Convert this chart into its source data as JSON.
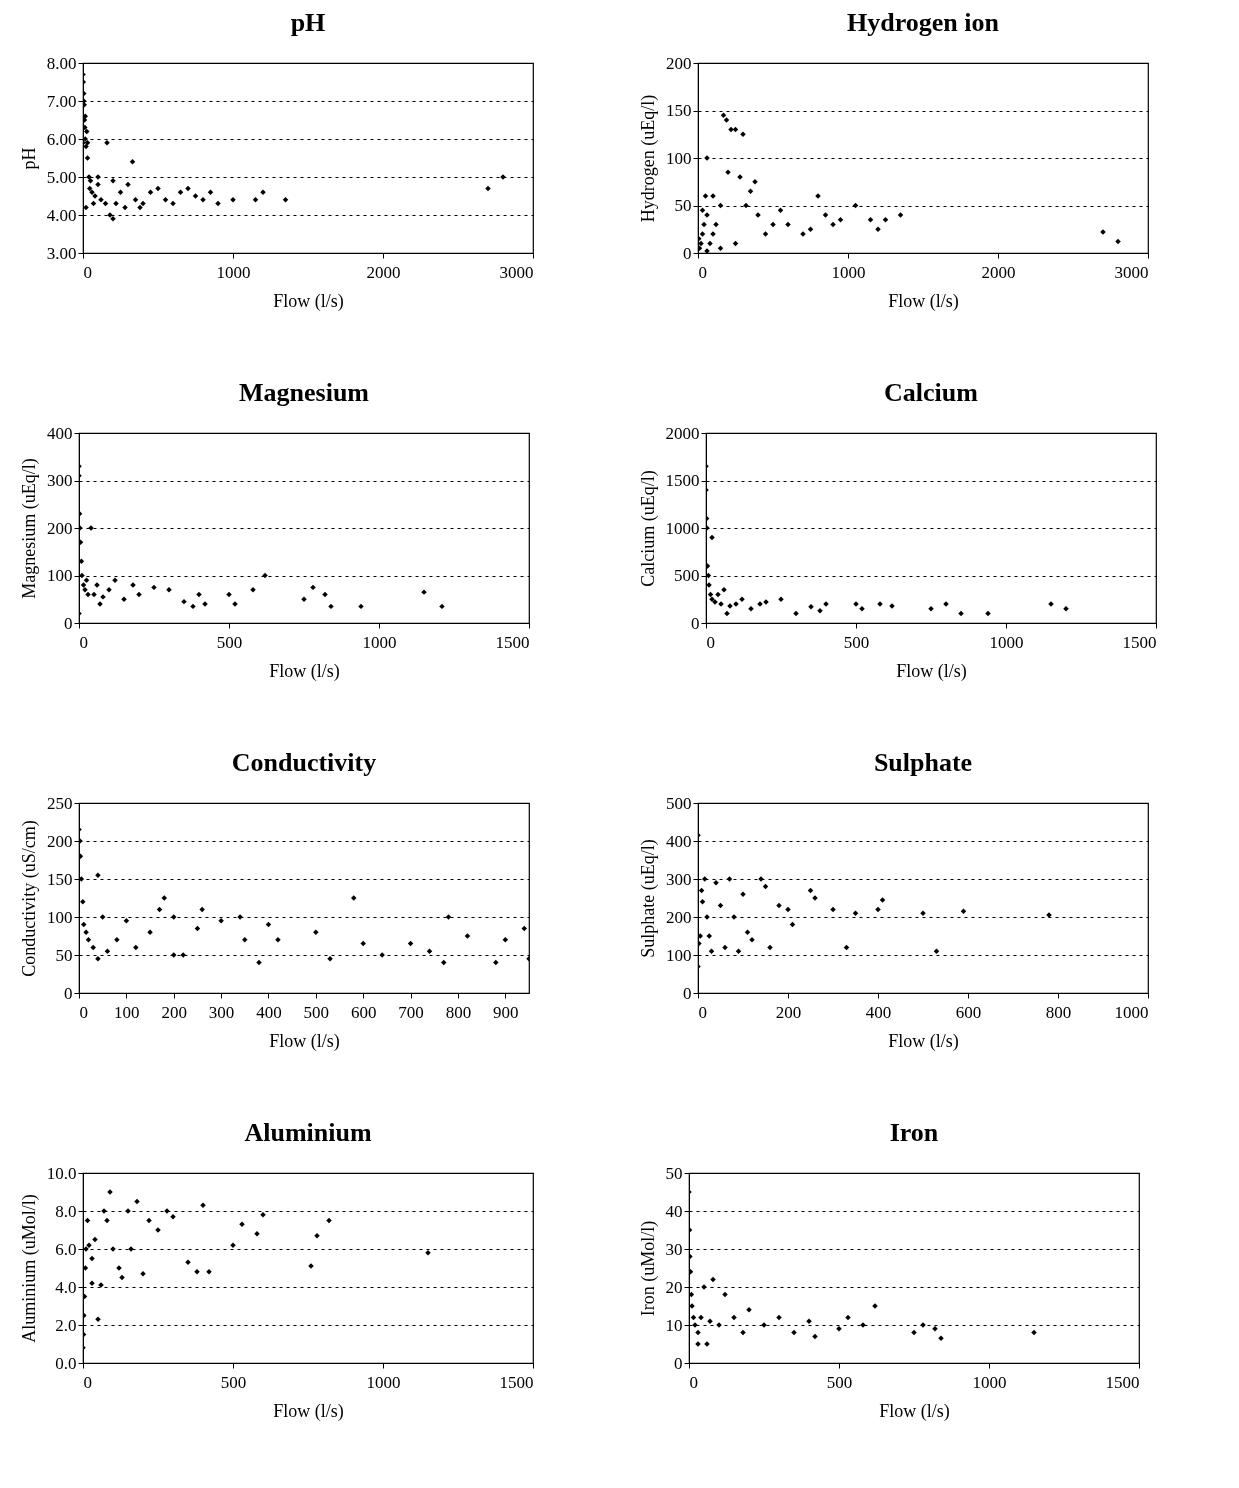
{
  "chart_data": [
    {
      "type": "scatter",
      "title": "pH",
      "xlabel": "Flow (l/s)",
      "ylabel": "pH",
      "xlim": [
        0,
        3000
      ],
      "ylim": [
        3,
        8
      ],
      "xticks": [
        0,
        1000,
        2000,
        3000
      ],
      "yticks": [
        {
          "value": 3,
          "label": "3.00"
        },
        {
          "value": 4,
          "label": "4.00"
        },
        {
          "value": 5,
          "label": "5.00"
        },
        {
          "value": 6,
          "label": "6.00"
        },
        {
          "value": 7,
          "label": "7.00"
        },
        {
          "value": 8,
          "label": "8.00"
        }
      ],
      "grid": "y",
      "marker": "diamond",
      "series": [
        {
          "color": "#000000",
          "x": [
            0,
            2,
            5,
            8,
            10,
            12,
            15,
            20,
            25,
            30,
            40,
            50,
            60,
            70,
            80,
            100,
            120,
            150,
            160,
            180,
            200,
            220,
            250,
            280,
            300,
            330,
            350,
            380,
            400,
            450,
            500,
            550,
            600,
            650,
            700,
            750,
            800,
            850,
            900,
            1000,
            1150,
            1200,
            1350,
            2700,
            2800,
            5,
            15,
            30,
            45,
            20,
            100,
            200,
            0
          ],
          "values": [
            7.7,
            7.5,
            7.2,
            6.9,
            6.5,
            6.3,
            6.0,
            5.8,
            6.2,
            5.5,
            5.0,
            4.9,
            4.6,
            4.3,
            4.5,
            4.8,
            4.4,
            4.3,
            5.9,
            4.0,
            3.9,
            4.3,
            4.6,
            4.2,
            4.8,
            5.4,
            4.4,
            4.2,
            4.3,
            4.6,
            4.7,
            4.4,
            4.3,
            4.6,
            4.7,
            4.5,
            4.4,
            4.6,
            4.3,
            4.4,
            4.4,
            4.6,
            4.4,
            4.7,
            5.0,
            7.0,
            6.6,
            5.9,
            4.7,
            4.2,
            5.0,
            4.9,
            5.9
          ]
        }
      ]
    },
    {
      "type": "scatter",
      "title": "Hydrogen ion",
      "xlabel": "Flow (l/s)",
      "ylabel": "Hydrogen (uEq/l)",
      "xlim": [
        0,
        3000
      ],
      "ylim": [
        0,
        200
      ],
      "xticks": [
        0,
        1000,
        2000,
        3000
      ],
      "yticks": [
        0,
        50,
        100,
        150,
        200
      ],
      "grid": "y",
      "marker": "diamond",
      "series": [
        {
          "color": "#000000",
          "x": [
            60,
            10,
            20,
            30,
            40,
            50,
            60,
            80,
            100,
            120,
            150,
            170,
            190,
            220,
            250,
            300,
            320,
            350,
            380,
            400,
            450,
            500,
            550,
            600,
            700,
            750,
            800,
            850,
            900,
            950,
            1050,
            1150,
            1200,
            1250,
            1350,
            2700,
            2800,
            60,
            200,
            280,
            100,
            150,
            30,
            250,
            5
          ],
          "values": [
            2,
            5,
            10,
            20,
            30,
            60,
            40,
            10,
            60,
            30,
            50,
            145,
            140,
            130,
            130,
            125,
            50,
            65,
            75,
            40,
            20,
            30,
            45,
            30,
            20,
            25,
            60,
            40,
            30,
            35,
            50,
            35,
            25,
            35,
            40,
            22,
            12,
            100,
            85,
            80,
            20,
            5,
            45,
            10,
            15
          ]
        }
      ]
    },
    {
      "type": "scatter",
      "title": "Magnesium",
      "xlabel": "Flow (l/s)",
      "ylabel": "Magnesium (uEq/l)",
      "xlim": [
        0,
        1500
      ],
      "ylim": [
        0,
        400
      ],
      "xticks": [
        0,
        500,
        1000,
        1500
      ],
      "yticks": [
        0,
        100,
        200,
        300,
        400
      ],
      "grid": "y",
      "marker": "diamond",
      "series": [
        {
          "color": "#000000",
          "x": [
            0,
            0,
            2,
            3,
            5,
            8,
            10,
            15,
            20,
            30,
            40,
            50,
            60,
            80,
            100,
            120,
            150,
            180,
            200,
            250,
            300,
            350,
            380,
            400,
            420,
            500,
            520,
            580,
            620,
            750,
            780,
            820,
            840,
            940,
            1150,
            1210,
            0,
            25,
            70
          ],
          "values": [
            330,
            310,
            230,
            200,
            170,
            130,
            100,
            80,
            70,
            60,
            200,
            60,
            80,
            55,
            70,
            90,
            50,
            80,
            60,
            75,
            70,
            45,
            35,
            60,
            40,
            60,
            40,
            70,
            100,
            50,
            75,
            60,
            35,
            35,
            65,
            35,
            20,
            90,
            40
          ]
        }
      ]
    },
    {
      "type": "scatter",
      "title": "Calcium",
      "xlabel": "Flow (l/s)",
      "ylabel": "Calcium (uEq/l)",
      "xlim": [
        0,
        1500
      ],
      "ylim": [
        0,
        2000
      ],
      "xticks": [
        0,
        500,
        1000,
        1500
      ],
      "yticks": [
        0,
        500,
        1000,
        1500,
        2000
      ],
      "grid": "y",
      "marker": "diamond",
      "series": [
        {
          "color": "#000000",
          "x": [
            0,
            0,
            2,
            3,
            20,
            5,
            8,
            10,
            15,
            20,
            30,
            50,
            60,
            80,
            100,
            120,
            150,
            180,
            200,
            250,
            300,
            350,
            380,
            400,
            500,
            520,
            580,
            620,
            750,
            800,
            850,
            940,
            1150,
            1200,
            40,
            70
          ],
          "values": [
            1650,
            1400,
            1100,
            1000,
            900,
            600,
            500,
            400,
            300,
            250,
            220,
            200,
            350,
            180,
            200,
            250,
            150,
            200,
            220,
            250,
            100,
            170,
            130,
            200,
            200,
            150,
            200,
            180,
            150,
            200,
            100,
            100,
            200,
            150,
            300,
            100
          ]
        }
      ]
    },
    {
      "type": "scatter",
      "title": "Conductivity",
      "xlabel": "Flow (l/s)",
      "ylabel": "Conductivity (uS/cm)",
      "xlim": [
        0,
        950
      ],
      "ylim": [
        0,
        250
      ],
      "xticks": [
        0,
        100,
        200,
        300,
        400,
        500,
        600,
        700,
        800,
        900
      ],
      "yticks": [
        0,
        50,
        100,
        150,
        200,
        250
      ],
      "grid": "y",
      "marker": "diamond",
      "series": [
        {
          "color": "#000000",
          "x": [
            0,
            2,
            3,
            5,
            8,
            10,
            15,
            20,
            30,
            40,
            50,
            60,
            80,
            100,
            120,
            150,
            170,
            180,
            200,
            220,
            260,
            300,
            340,
            350,
            380,
            400,
            420,
            500,
            530,
            580,
            600,
            640,
            700,
            740,
            770,
            780,
            820,
            880,
            900,
            940,
            950,
            40,
            200,
            250
          ],
          "values": [
            215,
            200,
            180,
            150,
            120,
            90,
            80,
            70,
            60,
            155,
            100,
            55,
            70,
            95,
            60,
            80,
            110,
            125,
            100,
            50,
            110,
            95,
            100,
            70,
            40,
            90,
            70,
            80,
            45,
            125,
            65,
            50,
            65,
            55,
            40,
            100,
            75,
            40,
            70,
            85,
            45,
            45,
            50,
            85
          ]
        }
      ]
    },
    {
      "type": "scatter",
      "title": "Sulphate",
      "xlabel": "Flow (l/s)",
      "ylabel": "Sulphate (uEq/l)",
      "xlim": [
        0,
        1000
      ],
      "ylim": [
        0,
        500
      ],
      "xticks": [
        0,
        200,
        400,
        600,
        800,
        1000
      ],
      "yticks": [
        0,
        100,
        200,
        300,
        400,
        500
      ],
      "grid": "y",
      "marker": "diamond",
      "series": [
        {
          "color": "#000000",
          "x": [
            0,
            0,
            2,
            5,
            8,
            10,
            15,
            20,
            30,
            40,
            50,
            60,
            70,
            80,
            100,
            110,
            120,
            140,
            150,
            160,
            180,
            200,
            210,
            250,
            260,
            300,
            330,
            350,
            400,
            410,
            500,
            530,
            590,
            780,
            25,
            90
          ],
          "values": [
            415,
            70,
            130,
            150,
            270,
            240,
            300,
            200,
            110,
            290,
            230,
            120,
            300,
            200,
            260,
            160,
            140,
            300,
            280,
            120,
            230,
            220,
            180,
            270,
            250,
            220,
            120,
            210,
            220,
            245,
            210,
            110,
            215,
            205,
            150,
            110
          ]
        }
      ]
    },
    {
      "type": "scatter",
      "title": "Aluminium",
      "xlabel": "Flow (l/s)",
      "ylabel": "Aluminium (uMol/l)",
      "xlim": [
        0,
        1500
      ],
      "ylim": [
        0,
        10
      ],
      "xticks": [
        0,
        500,
        1000,
        1500
      ],
      "yticks": [
        {
          "value": 0,
          "label": "0.0"
        },
        {
          "value": 2,
          "label": "2.0"
        },
        {
          "value": 4,
          "label": "4.0"
        },
        {
          "value": 6,
          "label": "6.0"
        },
        {
          "value": 8,
          "label": "8.0"
        },
        {
          "value": 10,
          "label": "10.0"
        }
      ],
      "grid": "y",
      "marker": "diamond",
      "series": [
        {
          "color": "#000000",
          "x": [
            0,
            2,
            3,
            5,
            8,
            10,
            15,
            20,
            30,
            40,
            50,
            60,
            80,
            90,
            100,
            120,
            150,
            160,
            180,
            200,
            220,
            250,
            280,
            300,
            350,
            380,
            400,
            420,
            500,
            530,
            580,
            600,
            760,
            780,
            820,
            1150,
            70,
            130,
            30
          ],
          "values": [
            0.8,
            1.5,
            2.5,
            3.5,
            5,
            6,
            7.5,
            6.2,
            5.5,
            6.5,
            2.3,
            4.1,
            7.5,
            9.0,
            6.0,
            5,
            8,
            6,
            8.5,
            4.7,
            7.5,
            7,
            8,
            7.7,
            5.3,
            4.8,
            8.3,
            4.8,
            6.2,
            7.3,
            6.8,
            7.8,
            5.1,
            6.7,
            7.5,
            5.8,
            8.0,
            4.5,
            4.2
          ]
        }
      ]
    },
    {
      "type": "scatter",
      "title": "Iron",
      "xlabel": "Flow (l/s)",
      "ylabel": "Iron (uMol/l)",
      "xlim": [
        0,
        1500
      ],
      "ylim": [
        0,
        50
      ],
      "xticks": [
        0,
        500,
        1000,
        1500
      ],
      "yticks": [
        0,
        10,
        20,
        30,
        40,
        50
      ],
      "grid": "y",
      "marker": "diamond",
      "series": [
        {
          "color": "#000000",
          "x": [
            0,
            2,
            3,
            5,
            8,
            10,
            15,
            20,
            30,
            40,
            50,
            60,
            80,
            100,
            120,
            150,
            180,
            200,
            250,
            300,
            350,
            400,
            420,
            500,
            530,
            580,
            620,
            750,
            780,
            820,
            840,
            1150,
            30,
            70
          ],
          "values": [
            45,
            35,
            28,
            24,
            18,
            15,
            12,
            10,
            8,
            12,
            20,
            5,
            22,
            10,
            18,
            12,
            8,
            14,
            10,
            12,
            8,
            11,
            7,
            9,
            12,
            10,
            15,
            8,
            10,
            9,
            6.5,
            8,
            5,
            11
          ]
        }
      ]
    }
  ]
}
